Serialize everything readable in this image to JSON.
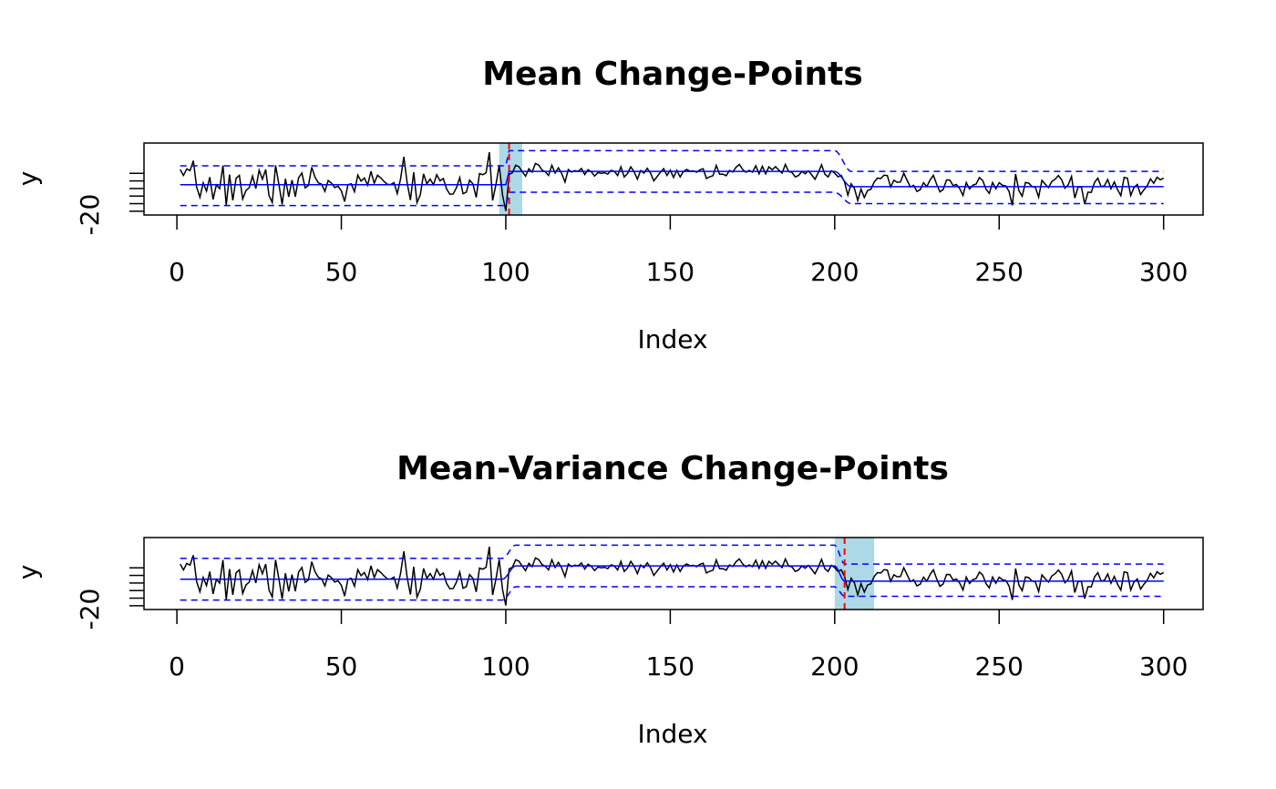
{
  "colors": {
    "series": "#000000",
    "fitted_mean": "#0000ff",
    "band": "#0000ff",
    "changepoint": "#ff0000",
    "ci_region": "#add8e6"
  },
  "chart_data": [
    {
      "type": "line",
      "title": "Mean Change-Points",
      "xlabel": "Index",
      "ylabel": "y",
      "x_ticks": [
        0,
        50,
        100,
        150,
        200,
        250,
        300
      ],
      "y_ticks": [
        -20
      ],
      "xlim": [
        -10,
        312
      ],
      "ylim": [
        -26,
        12
      ],
      "grid": false,
      "changepoints": [
        101
      ],
      "changepoint_interval": [
        98,
        105
      ],
      "segments": [
        {
          "from": 1,
          "to": 100,
          "mean": -10,
          "lower": -21,
          "upper": 0
        },
        {
          "from": 101,
          "to": 200,
          "mean": -3,
          "lower": -14,
          "upper": 8
        },
        {
          "from": 205,
          "to": 300,
          "mean": -11,
          "lower": -20,
          "upper": -3
        }
      ],
      "seed": 7
    },
    {
      "type": "line",
      "title": "Mean-Variance Change-Points",
      "xlabel": "Index",
      "ylabel": "y",
      "x_ticks": [
        0,
        50,
        100,
        150,
        200,
        250,
        300
      ],
      "y_ticks": [
        -20
      ],
      "xlim": [
        -10,
        312
      ],
      "ylim": [
        -26,
        12
      ],
      "grid": false,
      "changepoints": [
        203
      ],
      "changepoint_interval": [
        200,
        212
      ],
      "segments": [
        {
          "from": 1,
          "to": 99,
          "mean": -10,
          "lower": -21,
          "upper": 1
        },
        {
          "from": 103,
          "to": 200,
          "mean": -3,
          "lower": -14,
          "upper": 8
        },
        {
          "from": 203,
          "to": 300,
          "mean": -11,
          "lower": -19,
          "upper": -2
        }
      ],
      "seed": 7
    }
  ]
}
